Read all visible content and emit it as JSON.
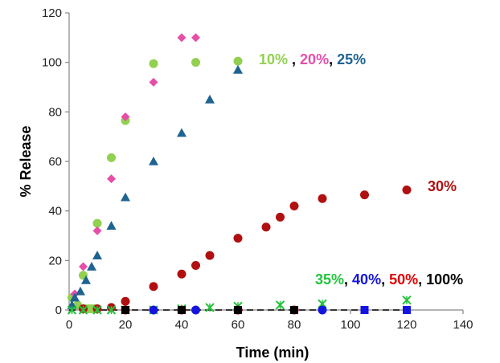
{
  "chart_data": {
    "type": "scatter",
    "xlabel": "Time (min)",
    "ylabel": "% Release",
    "xlim": [
      0,
      140
    ],
    "ylim": [
      0,
      120
    ],
    "xticks": [
      0,
      20,
      40,
      60,
      80,
      100,
      120,
      140
    ],
    "yticks": [
      0,
      20,
      40,
      60,
      80,
      100,
      120
    ],
    "grid": false,
    "colors": {
      "s10": "#92d050",
      "s20": "#e64ea8",
      "s25": "#1f6391",
      "s30": "#b01010",
      "s35": "#22c33a",
      "s40": "#1414e0",
      "s50": "#e00000",
      "s100": "#000000"
    },
    "annotations": [
      {
        "parts": [
          {
            "text": "10%",
            "color": "#92d050"
          },
          {
            "text": " , ",
            "color": "#000000"
          },
          {
            "text": "20%",
            "color": "#e64ea8"
          },
          {
            "text": ", ",
            "color": "#000000"
          },
          {
            "text": "25%",
            "color": "#1f6391"
          }
        ]
      },
      {
        "parts": [
          {
            "text": "30%",
            "color": "#b01010"
          }
        ]
      },
      {
        "parts": [
          {
            "text": "35%",
            "color": "#22c33a"
          },
          {
            "text": ", ",
            "color": "#000000"
          },
          {
            "text": "40%",
            "color": "#1414e0"
          },
          {
            "text": ", ",
            "color": "#000000"
          },
          {
            "text": "50%",
            "color": "#e00000"
          },
          {
            "text": ", ",
            "color": "#000000"
          },
          {
            "text": "100%",
            "color": "#000000"
          }
        ]
      }
    ],
    "series": [
      {
        "key": "s10",
        "marker": "circle",
        "x": [
          1,
          3,
          5,
          6,
          7,
          8,
          9,
          10,
          15,
          20,
          30,
          45,
          60
        ],
        "y": [
          5,
          2,
          14,
          0.5,
          0.5,
          0.5,
          0.5,
          35,
          61.5,
          76.5,
          99.5,
          100,
          100.5
        ]
      },
      {
        "key": "s20",
        "marker": "diamond",
        "x": [
          2,
          5,
          10,
          15,
          20,
          30,
          40,
          45
        ],
        "y": [
          6.5,
          17.5,
          32,
          53,
          78,
          92,
          110,
          110
        ]
      },
      {
        "key": "s25",
        "marker": "triangle",
        "x": [
          1,
          2,
          4,
          6,
          8,
          10,
          15,
          20,
          30,
          40,
          50,
          60
        ],
        "y": [
          2,
          5,
          7.5,
          12,
          17.5,
          22,
          34,
          45.5,
          60,
          71.5,
          85,
          97
        ]
      },
      {
        "key": "s30",
        "marker": "circle",
        "x": [
          5,
          10,
          15,
          20,
          30,
          40,
          45,
          50,
          60,
          70,
          75,
          80,
          90,
          105,
          120
        ],
        "y": [
          0.5,
          0.5,
          1,
          3.5,
          9.5,
          14.5,
          18,
          22,
          29,
          33.5,
          37.5,
          42,
          45,
          46.5,
          48.5
        ]
      },
      {
        "key": "s35",
        "marker": "cross",
        "x": [
          1,
          5,
          10,
          15,
          20,
          30,
          40,
          50,
          60,
          75,
          90,
          120
        ],
        "y": [
          0,
          0,
          0,
          0,
          0,
          0,
          0.5,
          1,
          1.5,
          2,
          2.5,
          4
        ]
      },
      {
        "key": "s40",
        "marker": "circle",
        "x": [
          30,
          45,
          60,
          90
        ],
        "y": [
          0,
          0,
          0,
          0
        ]
      },
      {
        "key": "s50",
        "marker": "circle",
        "x": [
          20,
          40,
          60,
          80
        ],
        "y": [
          0,
          0,
          0,
          0
        ]
      },
      {
        "key": "s100",
        "marker": "square",
        "x": [
          20,
          40,
          60,
          80,
          105,
          120
        ],
        "y": [
          0,
          0,
          0,
          0,
          0,
          0
        ]
      }
    ],
    "baseline": {
      "y": 0,
      "x_from": 0,
      "x_to": 120,
      "style": "dashed"
    },
    "extra_markers": [
      {
        "marker": "square",
        "color": "#1414e0",
        "x": 105,
        "y": 0
      },
      {
        "marker": "square",
        "color": "#1414e0",
        "x": 120,
        "y": 0
      }
    ]
  }
}
